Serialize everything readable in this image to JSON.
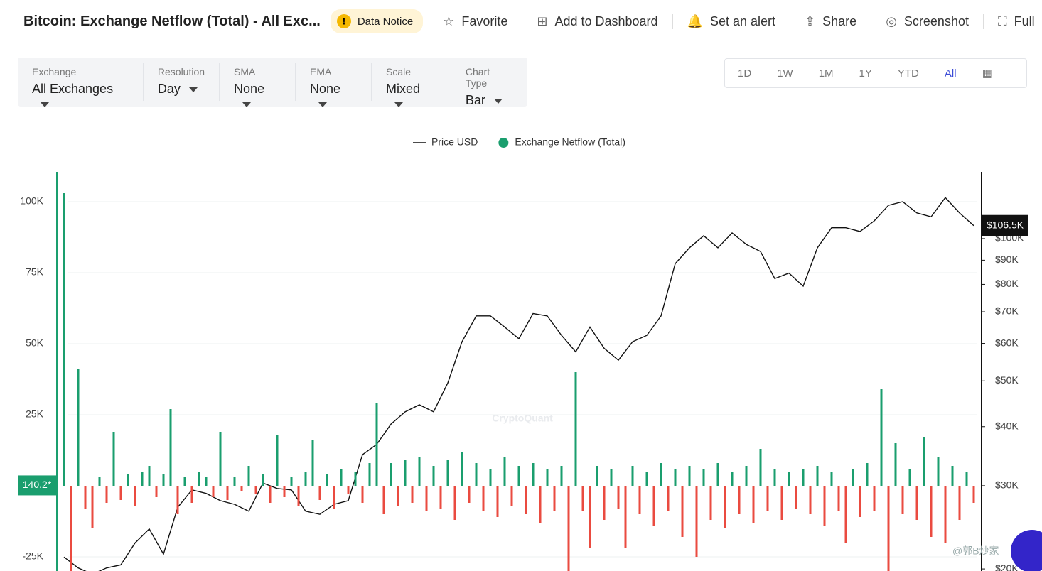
{
  "header": {
    "title": "Bitcoin: Exchange Netflow (Total) - All Exc...",
    "notice": "Data Notice",
    "actions": [
      "Favorite",
      "Add to Dashboard",
      "Set an alert",
      "Share",
      "Screenshot",
      "Full"
    ]
  },
  "controls": [
    {
      "label": "Exchange",
      "value": "All Exchanges"
    },
    {
      "label": "Resolution",
      "value": "Day"
    },
    {
      "label": "SMA",
      "value": "None"
    },
    {
      "label": "EMA",
      "value": "None"
    },
    {
      "label": "Scale",
      "value": "Mixed"
    },
    {
      "label": "Chart Type",
      "value": "Bar"
    }
  ],
  "ranges": [
    "1D",
    "1W",
    "1M",
    "1Y",
    "YTD",
    "All"
  ],
  "active_range": "All",
  "watermark": "CryptoQuant",
  "footer_tag": "@郭B炒家",
  "chart_data": {
    "type": "bar",
    "ylim": [
      -30000,
      110500
    ],
    "yticks": [
      {
        "value": -25000,
        "label": "-25K"
      },
      {
        "value": 25000,
        "label": "25K"
      },
      {
        "value": 50000,
        "label": "50K"
      },
      {
        "value": 75000,
        "label": "75K"
      },
      {
        "value": 100000,
        "label": "100K"
      }
    ],
    "y2lim": [
      19800,
      138400
    ],
    "y2_log": true,
    "y2ticks": [
      {
        "value": 20000,
        "label": "$20K"
      },
      {
        "value": 30000,
        "label": "$30K"
      },
      {
        "value": 40000,
        "label": "$40K"
      },
      {
        "value": 50000,
        "label": "$50K"
      },
      {
        "value": 60000,
        "label": "$60K"
      },
      {
        "value": 70000,
        "label": "$70K"
      },
      {
        "value": 80000,
        "label": "$80K"
      },
      {
        "value": 90000,
        "label": "$90K"
      },
      {
        "value": 100000,
        "label": "$100K"
      }
    ],
    "grid": true,
    "last_netflow": {
      "value": 140.2,
      "label": "140.2*"
    },
    "last_price": {
      "value": 106500,
      "label": "$106.5K"
    },
    "series": [
      {
        "name": "Price USD",
        "type": "line",
        "axis": "y2",
        "color": "#111111",
        "values": [
          21200,
          20100,
          19500,
          20100,
          20400,
          22700,
          24300,
          21500,
          27000,
          29400,
          28900,
          27900,
          27400,
          26500,
          30400,
          29600,
          29400,
          26500,
          26100,
          27400,
          27900,
          34900,
          36700,
          40500,
          43000,
          44500,
          43000,
          49500,
          60500,
          68600,
          68600,
          65000,
          61400,
          69400,
          68600,
          62400,
          57600,
          65000,
          58600,
          55300,
          60500,
          62400,
          68600,
          88500,
          95600,
          101400,
          95600,
          102800,
          97200,
          93900,
          82300,
          84500,
          79300,
          95600,
          105400,
          105400,
          103500,
          109000,
          117600,
          119700,
          113300,
          111200,
          122100,
          113300,
          106500
        ]
      },
      {
        "name": "Exchange Netflow (Total)",
        "type": "bar",
        "color": "#1a9e6e",
        "negative_color": "#ea4b40",
        "values": [
          103000,
          -30000,
          41000,
          -8000,
          -15000,
          3000,
          -6000,
          19000,
          -5000,
          4000,
          -7000,
          5000,
          7000,
          -4000,
          4000,
          27000,
          -10000,
          3000,
          -6000,
          5000,
          3000,
          -4000,
          19000,
          -5000,
          3000,
          -2000,
          7000,
          -3000,
          4000,
          -6000,
          18000,
          -4000,
          3000,
          -7000,
          5000,
          16000,
          -5000,
          4000,
          -8000,
          6000,
          -3000,
          5000,
          -6000,
          8000,
          29000,
          -10000,
          8000,
          -7000,
          9000,
          -6000,
          10000,
          -9000,
          7000,
          -8000,
          9000,
          -12000,
          12000,
          -6000,
          8000,
          -9000,
          6000,
          -11000,
          10000,
          -7000,
          7000,
          -10000,
          8000,
          -13000,
          6000,
          -9000,
          7000,
          -30000,
          40000,
          -9000,
          -22000,
          7000,
          -12000,
          6000,
          -8000,
          -22000,
          7000,
          -10000,
          5000,
          -14000,
          8000,
          -9000,
          6000,
          -18000,
          7000,
          -25000,
          6000,
          -12000,
          8000,
          -15000,
          5000,
          -10000,
          7000,
          -13000,
          13000,
          -9000,
          6000,
          -12000,
          5000,
          -8000,
          6000,
          -10000,
          7000,
          -14000,
          5000,
          -9000,
          -20000,
          6000,
          -11000,
          8000,
          -9000,
          34000,
          -30000,
          15000,
          -10000,
          6000,
          -12000,
          17000,
          -18000,
          10000,
          -20000,
          7000,
          -12000,
          5000,
          -6000
        ]
      }
    ]
  }
}
